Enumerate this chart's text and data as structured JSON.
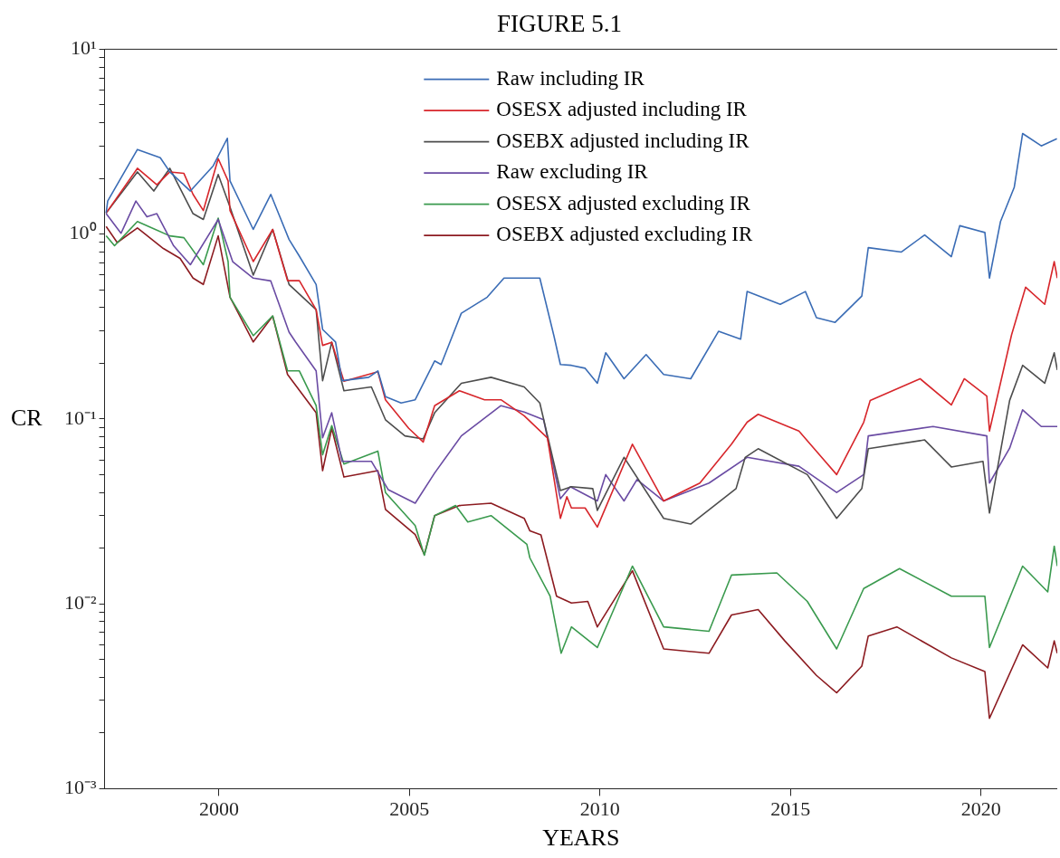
{
  "chart_data": {
    "type": "line",
    "title": "FIGURE 5.1",
    "xlabel": "YEARS",
    "ylabel": "CR",
    "log": "y",
    "legend": "top",
    "xlim": [
      1997,
      2022
    ],
    "xticks": [
      2000,
      2005,
      2010,
      2015,
      2020
    ],
    "ylim": [
      0.001,
      10
    ],
    "yticks": [
      {
        "value": 0.001,
        "label": "10⁻³"
      },
      {
        "value": 0.002,
        "label": null
      },
      {
        "value": 0.003,
        "label": null
      },
      {
        "value": 0.004,
        "label": null
      },
      {
        "value": 0.005,
        "label": null
      },
      {
        "value": 0.006,
        "label": null
      },
      {
        "value": 0.007,
        "label": null
      },
      {
        "value": 0.008,
        "label": null
      },
      {
        "value": 0.009,
        "label": null
      },
      {
        "value": 0.01,
        "label": "10⁻²"
      },
      {
        "value": 0.02,
        "label": null
      },
      {
        "value": 0.03,
        "label": null
      },
      {
        "value": 0.04,
        "label": null
      },
      {
        "value": 0.05,
        "label": null
      },
      {
        "value": 0.06,
        "label": null
      },
      {
        "value": 0.07,
        "label": null
      },
      {
        "value": 0.08,
        "label": null
      },
      {
        "value": 0.09,
        "label": null
      },
      {
        "value": 0.1,
        "label": "10⁻¹"
      },
      {
        "value": 0.2,
        "label": null
      },
      {
        "value": 0.3,
        "label": null
      },
      {
        "value": 0.4,
        "label": null
      },
      {
        "value": 0.5,
        "label": null
      },
      {
        "value": 0.6,
        "label": null
      },
      {
        "value": 0.7,
        "label": null
      },
      {
        "value": 0.8,
        "label": null
      },
      {
        "value": 0.9,
        "label": null
      },
      {
        "value": 1,
        "label": "10⁰"
      },
      {
        "value": 2,
        "label": null
      },
      {
        "value": 3,
        "label": null
      },
      {
        "value": 4,
        "label": null
      },
      {
        "value": 5,
        "label": null
      },
      {
        "value": 6,
        "label": null
      },
      {
        "value": 7,
        "label": null
      },
      {
        "value": 8,
        "label": null
      },
      {
        "value": 9,
        "label": null
      },
      {
        "value": 10,
        "label": "10¹"
      }
    ],
    "series": [
      {
        "name": "Raw including IR",
        "color": "#3a6cb5",
        "x": [
          1997.04,
          1997.08,
          1997.86,
          1998.46,
          1998.71,
          1999.25,
          1999.85,
          2000.22,
          2000.29,
          2000.9,
          2001.36,
          2001.84,
          2002.11,
          2002.55,
          2002.72,
          2003.06,
          2003.23,
          2003.93,
          2004.17,
          2004.37,
          2004.78,
          2005.15,
          2005.66,
          2005.83,
          2006.36,
          2007.04,
          2007.48,
          2008.42,
          2008.79,
          2008.96,
          2009.25,
          2009.61,
          2009.93,
          2010.15,
          2010.63,
          2011.21,
          2011.67,
          2012.38,
          2013.11,
          2013.69,
          2013.86,
          2014.73,
          2015.39,
          2015.68,
          2016.17,
          2016.87,
          2017.04,
          2017.91,
          2018.52,
          2019.22,
          2019.44,
          2020.1,
          2020.22,
          2020.51,
          2020.87,
          2021.09,
          2021.58,
          2021.99
        ],
        "values": [
          1.3,
          1.51,
          2.87,
          2.59,
          2.17,
          1.71,
          2.34,
          3.3,
          1.94,
          1.06,
          1.64,
          0.935,
          0.76,
          0.534,
          0.305,
          0.261,
          0.161,
          0.168,
          0.182,
          0.132,
          0.122,
          0.127,
          0.206,
          0.197,
          0.373,
          0.456,
          0.578,
          0.578,
          0.282,
          0.197,
          0.195,
          0.188,
          0.156,
          0.228,
          0.165,
          0.223,
          0.174,
          0.165,
          0.298,
          0.27,
          0.489,
          0.417,
          0.489,
          0.353,
          0.333,
          0.462,
          0.845,
          0.8,
          0.99,
          0.755,
          1.11,
          1.02,
          0.578,
          1.17,
          1.79,
          3.5,
          3.0,
          3.28
        ]
      },
      {
        "name": "OSESX adjusted including IR",
        "color": "#d7262b",
        "x": [
          1997.04,
          1997.86,
          1998.37,
          1998.71,
          1999.08,
          1999.32,
          1999.59,
          1999.98,
          2000.24,
          2000.29,
          2000.9,
          2001.41,
          2001.8,
          2002.11,
          2002.55,
          2002.72,
          2002.96,
          2003.28,
          2004.17,
          2004.37,
          2004.98,
          2005.36,
          2005.66,
          2006.31,
          2006.97,
          2007.4,
          2008.01,
          2008.62,
          2008.96,
          2009.13,
          2009.25,
          2009.61,
          2009.93,
          2010.85,
          2011.67,
          2012.62,
          2013.45,
          2013.86,
          2014.15,
          2015.22,
          2016.21,
          2016.92,
          2017.09,
          2018.4,
          2019.22,
          2019.56,
          2020.15,
          2020.22,
          2020.8,
          2021.17,
          2021.67,
          2021.92,
          2022.0
        ],
        "values": [
          1.3,
          2.27,
          1.85,
          2.17,
          2.13,
          1.64,
          1.34,
          2.56,
          1.94,
          1.34,
          0.71,
          1.06,
          0.56,
          0.56,
          0.39,
          0.25,
          0.26,
          0.16,
          0.18,
          0.127,
          0.089,
          0.075,
          0.118,
          0.142,
          0.127,
          0.127,
          0.104,
          0.079,
          0.029,
          0.038,
          0.033,
          0.033,
          0.026,
          0.073,
          0.036,
          0.045,
          0.073,
          0.096,
          0.106,
          0.086,
          0.05,
          0.096,
          0.126,
          0.165,
          0.119,
          0.165,
          0.133,
          0.086,
          0.285,
          0.516,
          0.417,
          0.71,
          0.578
        ]
      },
      {
        "name": "OSEBX adjusted including IR",
        "color": "#4d4d4d",
        "x": [
          1997.04,
          1997.86,
          1998.29,
          1998.71,
          1999.32,
          1999.59,
          1999.98,
          2000.29,
          2000.9,
          2001.41,
          2001.84,
          2002.55,
          2002.72,
          2002.96,
          2003.28,
          2004.0,
          2004.37,
          2004.88,
          2005.36,
          2005.66,
          2006.36,
          2007.14,
          2008.01,
          2008.42,
          2008.96,
          2009.25,
          2009.81,
          2009.93,
          2010.63,
          2011.67,
          2012.38,
          2013.57,
          2013.81,
          2014.15,
          2015.44,
          2016.21,
          2016.87,
          2017.04,
          2018.52,
          2019.22,
          2020.05,
          2020.22,
          2020.75,
          2021.09,
          2021.67,
          2021.92,
          2022.0
        ],
        "values": [
          1.3,
          2.17,
          1.71,
          2.27,
          1.29,
          1.2,
          2.1,
          1.4,
          0.6,
          1.06,
          0.534,
          0.39,
          0.161,
          0.26,
          0.142,
          0.149,
          0.099,
          0.081,
          0.078,
          0.108,
          0.156,
          0.168,
          0.149,
          0.122,
          0.041,
          0.043,
          0.042,
          0.032,
          0.062,
          0.029,
          0.027,
          0.042,
          0.062,
          0.069,
          0.05,
          0.029,
          0.042,
          0.069,
          0.077,
          0.055,
          0.059,
          0.031,
          0.126,
          0.195,
          0.156,
          0.228,
          0.184
        ]
      },
      {
        "name": "Raw excluding IR",
        "color": "#6a4ba3",
        "x": [
          1997.04,
          1997.43,
          1997.82,
          1998.11,
          1998.37,
          1998.81,
          1999.25,
          1999.98,
          2000.36,
          2000.9,
          2001.36,
          2001.84,
          2002.01,
          2002.55,
          2002.72,
          2002.96,
          2003.23,
          2004.0,
          2004.44,
          2005.15,
          2005.66,
          2006.36,
          2007.4,
          2008.01,
          2008.52,
          2008.96,
          2009.22,
          2009.93,
          2010.15,
          2010.63,
          2010.97,
          2011.67,
          2012.86,
          2013.86,
          2015.22,
          2016.21,
          2016.92,
          2017.04,
          2018.74,
          2020.15,
          2020.22,
          2020.75,
          2021.09,
          2021.58,
          2022.0
        ],
        "values": [
          1.29,
          1.01,
          1.51,
          1.24,
          1.29,
          0.865,
          0.683,
          1.2,
          0.71,
          0.578,
          0.558,
          0.295,
          0.261,
          0.182,
          0.079,
          0.108,
          0.059,
          0.059,
          0.0415,
          0.035,
          0.051,
          0.081,
          0.118,
          0.109,
          0.099,
          0.037,
          0.043,
          0.036,
          0.05,
          0.036,
          0.047,
          0.036,
          0.045,
          0.062,
          0.0555,
          0.04,
          0.05,
          0.081,
          0.091,
          0.081,
          0.045,
          0.0695,
          0.112,
          0.091,
          0.091
        ]
      },
      {
        "name": "OSESX adjusted excluding IR",
        "color": "#3a9a4e",
        "x": [
          1997.04,
          1997.26,
          1997.86,
          1998.71,
          1999.08,
          1999.59,
          1999.98,
          2000.24,
          2000.29,
          2000.9,
          2001.41,
          2001.8,
          2002.11,
          2002.55,
          2002.72,
          2002.96,
          2003.28,
          2004.17,
          2004.37,
          2005.15,
          2005.39,
          2005.66,
          2006.21,
          2006.53,
          2007.14,
          2008.08,
          2008.16,
          2008.69,
          2008.98,
          2009.25,
          2009.93,
          2010.85,
          2011.67,
          2012.86,
          2013.45,
          2014.64,
          2015.44,
          2016.21,
          2016.92,
          2017.86,
          2019.22,
          2020.1,
          2020.22,
          2021.09,
          2021.75,
          2021.92,
          2022.0
        ],
        "values": [
          0.98,
          0.865,
          1.17,
          0.978,
          0.956,
          0.683,
          1.22,
          0.71,
          0.456,
          0.282,
          0.361,
          0.182,
          0.182,
          0.118,
          0.064,
          0.092,
          0.057,
          0.067,
          0.04,
          0.0265,
          0.0183,
          0.03,
          0.034,
          0.0277,
          0.03,
          0.021,
          0.0177,
          0.011,
          0.0054,
          0.0075,
          0.0058,
          0.016,
          0.0075,
          0.0071,
          0.0143,
          0.0147,
          0.0103,
          0.0057,
          0.0121,
          0.0155,
          0.011,
          0.011,
          0.0058,
          0.016,
          0.0116,
          0.0205,
          0.016
        ]
      },
      {
        "name": "OSEBX adjusted excluding IR",
        "color": "#8c1b20",
        "x": [
          1997.04,
          1997.33,
          1997.86,
          1998.54,
          1998.98,
          1999.32,
          1999.59,
          1999.98,
          2000.29,
          2000.9,
          2001.41,
          2001.8,
          2002.55,
          2002.72,
          2002.96,
          2003.28,
          2004.17,
          2004.37,
          2005.15,
          2005.39,
          2005.66,
          2006.31,
          2007.14,
          2008.01,
          2008.16,
          2008.45,
          2008.86,
          2009.25,
          2009.68,
          2009.93,
          2010.85,
          2011.67,
          2012.86,
          2013.45,
          2014.15,
          2014.85,
          2015.68,
          2016.21,
          2016.87,
          2017.04,
          2017.79,
          2019.22,
          2020.1,
          2020.22,
          2021.09,
          2021.75,
          2021.92,
          2022.0
        ],
        "values": [
          1.1,
          0.9,
          1.08,
          0.836,
          0.739,
          0.578,
          0.534,
          0.978,
          0.456,
          0.261,
          0.36,
          0.174,
          0.108,
          0.0525,
          0.089,
          0.0485,
          0.0525,
          0.0324,
          0.0237,
          0.0185,
          0.03,
          0.034,
          0.035,
          0.029,
          0.0248,
          0.0236,
          0.011,
          0.0101,
          0.0103,
          0.0075,
          0.0151,
          0.0057,
          0.0054,
          0.0087,
          0.0093,
          0.0063,
          0.0041,
          0.0033,
          0.0046,
          0.0067,
          0.0075,
          0.0051,
          0.0043,
          0.0024,
          0.006,
          0.0045,
          0.0063,
          0.0054
        ]
      }
    ]
  }
}
